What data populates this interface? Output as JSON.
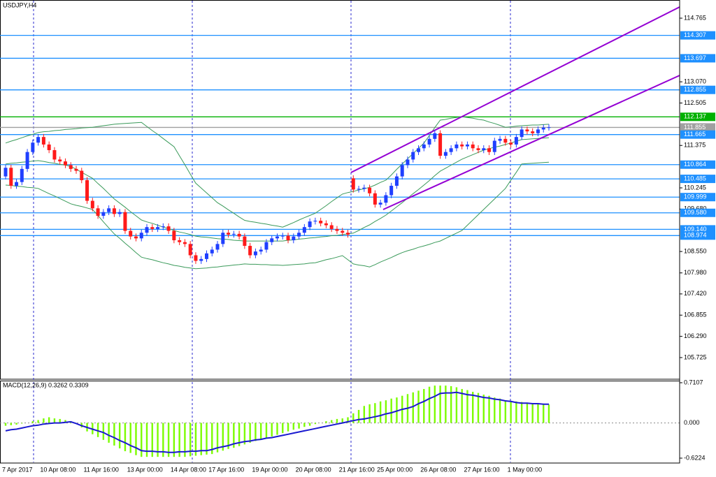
{
  "chart_data": {
    "type": "candlestick",
    "title": "USDJPY,H4",
    "up_color": "#1f3fff",
    "down_color": "#ff1a1a",
    "ylim": [
      105.148,
      115.249
    ],
    "yticks": [
      114.765,
      {
        "value": 113.07,
        "label": "113.070"
      },
      112.505,
      111.375,
      110.245,
      {
        "value": 109.68,
        "label": "109.680"
      },
      {
        "value": 108.55,
        "label": "108.550"
      },
      {
        "value": 107.98,
        "label": "107.980"
      },
      {
        "value": 107.42,
        "label": "107.420"
      },
      106.855,
      {
        "value": 106.29,
        "label": "106.290"
      },
      105.725
    ],
    "categories": [
      "7 Apr 2017",
      null,
      null,
      null,
      null,
      null,
      null,
      "10 Apr 08:00",
      null,
      null,
      null,
      null,
      null,
      null,
      null,
      "11 Apr 16:00",
      null,
      null,
      null,
      null,
      null,
      null,
      null,
      "13 Apr 00:00",
      null,
      null,
      null,
      null,
      null,
      null,
      null,
      "14 Apr 08:00",
      null,
      null,
      null,
      null,
      null,
      null,
      "17 Apr 16:00",
      null,
      null,
      null,
      null,
      null,
      null,
      null,
      "19 Apr 00:00",
      null,
      null,
      null,
      null,
      null,
      null,
      null,
      "20 Apr 08:00",
      null,
      null,
      null,
      null,
      null,
      null,
      null,
      "21 Apr 16:00",
      null,
      null,
      null,
      null,
      null,
      null,
      "25 Apr 00:00",
      null,
      null,
      null,
      null,
      null,
      null,
      null,
      "26 Apr 08:00",
      null,
      null,
      null,
      null,
      null,
      null,
      null,
      "27 Apr 16:00",
      null,
      null,
      null,
      null,
      null,
      null,
      null,
      "1 May 00:00",
      null,
      null,
      null,
      null,
      null,
      null,
      null
    ],
    "open": [
      110.55,
      110.78,
      110.3,
      110.4,
      110.75,
      111.2,
      111.45,
      111.6,
      111.4,
      111.25,
      111.0,
      110.95,
      110.85,
      110.75,
      110.7,
      110.45,
      109.9,
      109.7,
      109.5,
      109.6,
      109.7,
      109.55,
      109.6,
      109.1,
      108.95,
      108.9,
      109.05,
      109.2,
      109.15,
      109.2,
      109.22,
      109.1,
      108.85,
      108.8,
      108.75,
      108.45,
      108.3,
      108.35,
      108.5,
      108.6,
      108.75,
      109.05,
      109.0,
      109.02,
      108.95,
      108.7,
      108.45,
      108.55,
      108.6,
      108.8,
      108.9,
      108.95,
      108.97,
      108.85,
      108.95,
      109.05,
      109.2,
      109.35,
      109.37,
      109.3,
      109.25,
      109.15,
      109.1,
      109.05,
      110.5,
      110.2,
      110.22,
      110.25,
      110.1,
      109.8,
      109.85,
      110.05,
      110.3,
      110.55,
      110.85,
      111.0,
      111.2,
      111.3,
      111.4,
      111.55,
      111.7,
      111.1,
      111.2,
      111.3,
      111.4,
      111.35,
      111.4,
      111.3,
      111.25,
      111.3,
      111.2,
      111.5,
      111.55,
      111.45,
      111.4,
      111.6,
      111.8,
      111.75,
      111.7,
      111.8,
      111.85
    ],
    "high": [
      110.86,
      110.86,
      110.48,
      110.83,
      111.28,
      111.53,
      111.68,
      111.68,
      111.48,
      111.33,
      111.08,
      111.03,
      110.93,
      110.83,
      110.78,
      110.53,
      109.98,
      109.78,
      109.68,
      109.78,
      109.78,
      109.68,
      109.68,
      109.18,
      109.03,
      109.13,
      109.28,
      109.28,
      109.28,
      109.3,
      109.3,
      109.18,
      108.93,
      108.88,
      108.83,
      108.53,
      108.43,
      108.58,
      108.68,
      108.83,
      109.13,
      109.13,
      109.1,
      109.1,
      109.03,
      108.78,
      108.63,
      108.68,
      108.88,
      108.98,
      109.03,
      109.05,
      109.05,
      109.03,
      109.13,
      109.28,
      109.43,
      109.45,
      109.45,
      109.38,
      109.33,
      109.23,
      109.18,
      109.13,
      110.58,
      110.3,
      110.33,
      110.33,
      110.18,
      109.93,
      110.13,
      110.38,
      110.63,
      110.93,
      111.08,
      111.28,
      111.38,
      111.48,
      111.63,
      111.78,
      111.78,
      111.28,
      111.38,
      111.48,
      111.48,
      111.48,
      111.48,
      111.38,
      111.38,
      111.38,
      111.58,
      111.63,
      111.63,
      111.53,
      111.68,
      111.88,
      111.88,
      111.83,
      111.88,
      111.93,
      111.94
    ],
    "low": [
      110.47,
      110.22,
      110.22,
      110.32,
      110.67,
      111.12,
      111.37,
      111.32,
      111.17,
      110.92,
      110.87,
      110.77,
      110.67,
      110.62,
      110.37,
      109.82,
      109.62,
      109.42,
      109.42,
      109.52,
      109.47,
      109.47,
      109.02,
      108.87,
      108.82,
      108.82,
      108.97,
      109.07,
      109.07,
      109.12,
      109.02,
      108.77,
      108.72,
      108.67,
      108.37,
      108.22,
      108.22,
      108.27,
      108.42,
      108.52,
      108.67,
      108.92,
      108.92,
      108.87,
      108.62,
      108.37,
      108.37,
      108.47,
      108.52,
      108.72,
      108.82,
      108.87,
      108.77,
      108.77,
      108.87,
      108.97,
      109.12,
      109.27,
      109.22,
      109.17,
      109.07,
      109.02,
      108.97,
      108.92,
      110.12,
      110.12,
      110.14,
      110.02,
      109.72,
      109.72,
      109.77,
      109.97,
      110.22,
      110.47,
      110.77,
      110.92,
      111.12,
      111.22,
      111.32,
      111.47,
      111.02,
      111.02,
      111.12,
      111.22,
      111.27,
      111.27,
      111.22,
      111.17,
      111.17,
      111.12,
      111.12,
      111.42,
      111.37,
      111.32,
      111.32,
      111.52,
      111.67,
      111.62,
      111.62,
      111.72,
      111.77
    ],
    "close": [
      110.78,
      110.3,
      110.4,
      110.75,
      111.2,
      111.45,
      111.6,
      111.4,
      111.25,
      111.0,
      110.95,
      110.85,
      110.75,
      110.7,
      110.45,
      109.9,
      109.7,
      109.5,
      109.6,
      109.7,
      109.55,
      109.6,
      109.1,
      108.95,
      108.9,
      109.05,
      109.2,
      109.15,
      109.2,
      109.22,
      109.1,
      108.85,
      108.8,
      108.75,
      108.45,
      108.3,
      108.35,
      108.5,
      108.6,
      108.75,
      109.05,
      109.0,
      109.02,
      108.95,
      108.7,
      108.45,
      108.55,
      108.6,
      108.8,
      108.9,
      108.95,
      108.97,
      108.85,
      108.95,
      109.05,
      109.2,
      109.35,
      109.37,
      109.3,
      109.25,
      109.15,
      109.1,
      109.05,
      109.0,
      110.2,
      110.22,
      110.25,
      110.1,
      109.8,
      109.85,
      110.05,
      110.3,
      110.55,
      110.85,
      111.0,
      111.2,
      111.3,
      111.4,
      111.55,
      111.7,
      111.1,
      111.2,
      111.3,
      111.4,
      111.35,
      111.4,
      111.3,
      111.25,
      111.3,
      111.2,
      111.5,
      111.55,
      111.45,
      111.4,
      111.6,
      111.8,
      111.75,
      111.7,
      111.8,
      111.85,
      111.86
    ],
    "bands": {
      "color": "#3a9a5a",
      "upper": [
        111.44,
        111.49,
        111.53,
        111.58,
        111.63,
        111.67,
        111.72,
        111.74,
        111.75,
        111.77,
        111.78,
        111.8,
        111.81,
        111.82,
        111.84,
        111.85,
        111.86,
        111.88,
        111.9,
        111.92,
        111.94,
        111.95,
        111.96,
        111.97,
        111.98,
        111.99,
        111.88,
        111.77,
        111.67,
        111.56,
        111.45,
        111.34,
        111.1,
        110.86,
        110.61,
        110.37,
        110.24,
        110.11,
        109.98,
        109.85,
        109.76,
        109.66,
        109.57,
        109.47,
        109.38,
        109.35,
        109.33,
        109.3,
        109.28,
        109.25,
        109.23,
        109.2,
        109.26,
        109.32,
        109.39,
        109.45,
        109.51,
        109.57,
        109.67,
        109.77,
        109.88,
        109.98,
        110.08,
        110.12,
        110.15,
        110.19,
        110.22,
        110.26,
        110.32,
        110.39,
        110.45,
        110.59,
        110.74,
        110.88,
        111.02,
        111.16,
        111.3,
        111.44,
        111.64,
        111.85,
        112.05,
        112.07,
        112.1,
        112.12,
        112.14,
        112.12,
        112.1,
        112.07,
        112.05,
        112.0,
        111.96,
        111.91,
        111.86,
        111.87,
        111.89,
        111.9,
        111.91,
        111.92,
        111.92,
        111.93,
        111.94
      ],
      "middle": [
        110.88,
        110.9,
        110.91,
        110.93,
        110.94,
        110.96,
        110.97,
        110.95,
        110.92,
        110.9,
        110.87,
        110.85,
        110.82,
        110.74,
        110.66,
        110.58,
        110.5,
        110.36,
        110.23,
        110.09,
        109.95,
        109.84,
        109.73,
        109.61,
        109.5,
        109.39,
        109.34,
        109.3,
        109.25,
        109.2,
        109.16,
        109.11,
        109.07,
        109.04,
        109.0,
        108.96,
        108.94,
        108.93,
        108.91,
        108.89,
        108.88,
        108.87,
        108.85,
        108.84,
        108.83,
        108.83,
        108.83,
        108.83,
        108.83,
        108.83,
        108.83,
        108.83,
        108.85,
        108.86,
        108.88,
        108.89,
        108.91,
        108.92,
        108.94,
        108.95,
        108.97,
        108.98,
        109.0,
        109.02,
        109.04,
        109.11,
        109.19,
        109.26,
        109.35,
        109.43,
        109.52,
        109.63,
        109.74,
        109.85,
        109.97,
        110.09,
        110.2,
        110.32,
        110.44,
        110.57,
        110.69,
        110.77,
        110.85,
        110.93,
        111.01,
        111.07,
        111.13,
        111.19,
        111.25,
        111.29,
        111.33,
        111.36,
        111.4,
        111.44,
        111.49,
        111.53,
        111.54,
        111.55,
        111.56,
        111.57,
        111.58
      ],
      "lower": [
        110.32,
        110.31,
        110.29,
        110.28,
        110.26,
        110.25,
        110.23,
        110.16,
        110.09,
        110.03,
        109.96,
        109.89,
        109.82,
        109.78,
        109.75,
        109.71,
        109.67,
        109.51,
        109.34,
        109.18,
        109.02,
        108.9,
        108.77,
        108.65,
        108.52,
        108.4,
        108.36,
        108.33,
        108.29,
        108.25,
        108.22,
        108.18,
        108.16,
        108.13,
        108.11,
        108.09,
        108.1,
        108.11,
        108.13,
        108.14,
        108.16,
        108.17,
        108.19,
        108.2,
        108.22,
        108.21,
        108.21,
        108.2,
        108.2,
        108.19,
        108.19,
        108.18,
        108.19,
        108.2,
        108.21,
        108.22,
        108.24,
        108.25,
        108.29,
        108.33,
        108.36,
        108.4,
        108.44,
        108.33,
        108.22,
        108.19,
        108.17,
        108.14,
        108.2,
        108.27,
        108.33,
        108.39,
        108.46,
        108.52,
        108.57,
        108.61,
        108.66,
        108.7,
        108.74,
        108.79,
        108.83,
        108.9,
        108.97,
        109.04,
        109.11,
        109.25,
        109.39,
        109.53,
        109.67,
        109.81,
        109.95,
        110.09,
        110.23,
        110.45,
        110.66,
        110.88,
        110.89,
        110.9,
        110.91,
        110.92,
        110.93
      ]
    },
    "levels": {
      "values": [
        114.307,
        113.697,
        112.855,
        112.137,
        111.855,
        111.665,
        110.864,
        110.485,
        109.999,
        109.58,
        109.14,
        108.974
      ],
      "value_labels": [
        "114.307",
        "113.697",
        "112.855",
        "112.137",
        "111.855",
        "111.665",
        "110.864",
        "110.485",
        "109.999",
        "109.580",
        "109.140",
        "108.974"
      ],
      "colors": [
        "#1e90ff",
        "#1e90ff",
        "#1e90ff",
        "#00b000",
        "#a0a0a0",
        "#1e90ff",
        "#1e90ff",
        "#1e90ff",
        "#1e90ff",
        "#1e90ff",
        "#1e90ff",
        "#1e90ff"
      ]
    },
    "macd": {
      "label": "MACD(12,26,9) 0.3262 0.3309",
      "histogram_color": "#7cfc00",
      "signal_color": "#1a1ad0",
      "ylim": [
        -0.709,
        0.7477
      ],
      "yticks": [
        0.7107,
        {
          "value": 0,
          "label": "0.000"
        },
        -0.6224
      ],
      "histogram": [
        -0.05,
        -0.04,
        -0.03,
        -0.01,
        0.0,
        0.03,
        0.05,
        0.08,
        0.1,
        0.08,
        0.07,
        0.05,
        0.03,
        0.0,
        -0.08,
        -0.15,
        -0.2,
        -0.25,
        -0.3,
        -0.35,
        -0.4,
        -0.45,
        -0.5,
        -0.53,
        -0.57,
        -0.6,
        -0.6,
        -0.6,
        -0.6,
        -0.6,
        -0.6,
        -0.6,
        -0.6,
        -0.6,
        -0.59,
        -0.58,
        -0.57,
        -0.56,
        -0.55,
        -0.52,
        -0.49,
        -0.46,
        -0.44,
        -0.41,
        -0.38,
        -0.35,
        -0.32,
        -0.29,
        -0.26,
        -0.24,
        -0.21,
        -0.18,
        -0.15,
        -0.12,
        -0.1,
        -0.07,
        -0.05,
        -0.02,
        0.0,
        0.03,
        0.05,
        0.07,
        0.08,
        0.1,
        0.17,
        0.23,
        0.3,
        0.33,
        0.35,
        0.38,
        0.4,
        0.43,
        0.45,
        0.48,
        0.51,
        0.54,
        0.57,
        0.6,
        0.64,
        0.66,
        0.66,
        0.66,
        0.65,
        0.63,
        0.6,
        0.58,
        0.55,
        0.53,
        0.5,
        0.48,
        0.45,
        0.43,
        0.4,
        0.39,
        0.38,
        0.37,
        0.36,
        0.35,
        0.34,
        0.34,
        0.3262
      ],
      "signal": [
        -0.14,
        -0.12,
        -0.11,
        -0.09,
        -0.07,
        -0.05,
        -0.04,
        -0.02,
        -0.01,
        0.0,
        0.0,
        0.01,
        0.02,
        -0.01,
        -0.05,
        -0.08,
        -0.11,
        -0.14,
        -0.17,
        -0.22,
        -0.26,
        -0.31,
        -0.35,
        -0.4,
        -0.44,
        -0.49,
        -0.5,
        -0.5,
        -0.51,
        -0.51,
        -0.52,
        -0.52,
        -0.51,
        -0.51,
        -0.5,
        -0.5,
        -0.49,
        -0.49,
        -0.47,
        -0.44,
        -0.42,
        -0.4,
        -0.37,
        -0.35,
        -0.33,
        -0.32,
        -0.3,
        -0.29,
        -0.27,
        -0.26,
        -0.24,
        -0.22,
        -0.2,
        -0.18,
        -0.16,
        -0.14,
        -0.12,
        -0.1,
        -0.08,
        -0.06,
        -0.04,
        -0.02,
        0.0,
        0.02,
        0.04,
        0.06,
        0.07,
        0.09,
        0.11,
        0.13,
        0.16,
        0.18,
        0.21,
        0.24,
        0.26,
        0.29,
        0.34,
        0.38,
        0.43,
        0.47,
        0.52,
        0.53,
        0.53,
        0.54,
        0.52,
        0.5,
        0.49,
        0.47,
        0.45,
        0.44,
        0.42,
        0.41,
        0.39,
        0.38,
        0.36,
        0.35,
        0.35,
        0.34,
        0.34,
        0.33,
        0.3309
      ]
    }
  }
}
